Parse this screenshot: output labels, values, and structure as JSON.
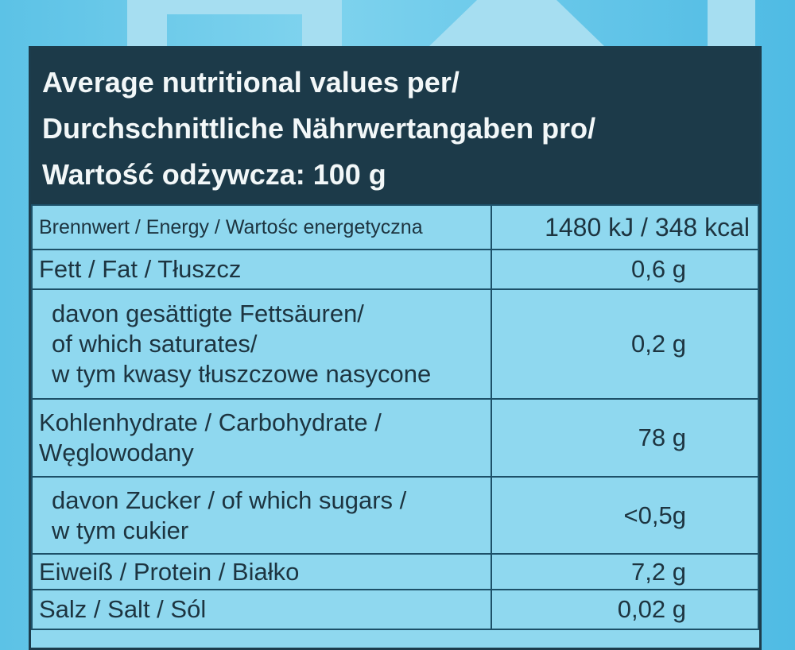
{
  "header": {
    "lines": [
      "Average nutritional values per/",
      "Durchschnittliche Nährwertangaben pro/",
      "Wartość odżywcza: 100 g"
    ]
  },
  "rows": [
    {
      "label": "Brennwert / Energy / Wartośc energetyczna",
      "value": "1480 kJ / 348 kcal"
    },
    {
      "label": "Fett / Fat / Tłuszcz",
      "value": "0,6 g"
    },
    {
      "label": [
        "davon gesättigte Fettsäuren/",
        "of which saturates/",
        "w tym kwasy tłuszczowe nasycone"
      ],
      "value": "0,2 g"
    },
    {
      "label": [
        "Kohlenhydrate / Carbohydrate /",
        "Węglowodany"
      ],
      "value": "78 g"
    },
    {
      "label": [
        "davon Zucker / of which sugars /",
        "w tym cukier"
      ],
      "value": "<0,5g"
    },
    {
      "label": "Eiweiß / Protein / Białko",
      "value": "7,2 g"
    },
    {
      "label": "Salz / Salt / Sól",
      "value": "0,02 g"
    }
  ],
  "colors": {
    "header_bg": "#1c3a49",
    "table_bg": "#8fd8ef",
    "package_bg": "#5cc2e6"
  }
}
